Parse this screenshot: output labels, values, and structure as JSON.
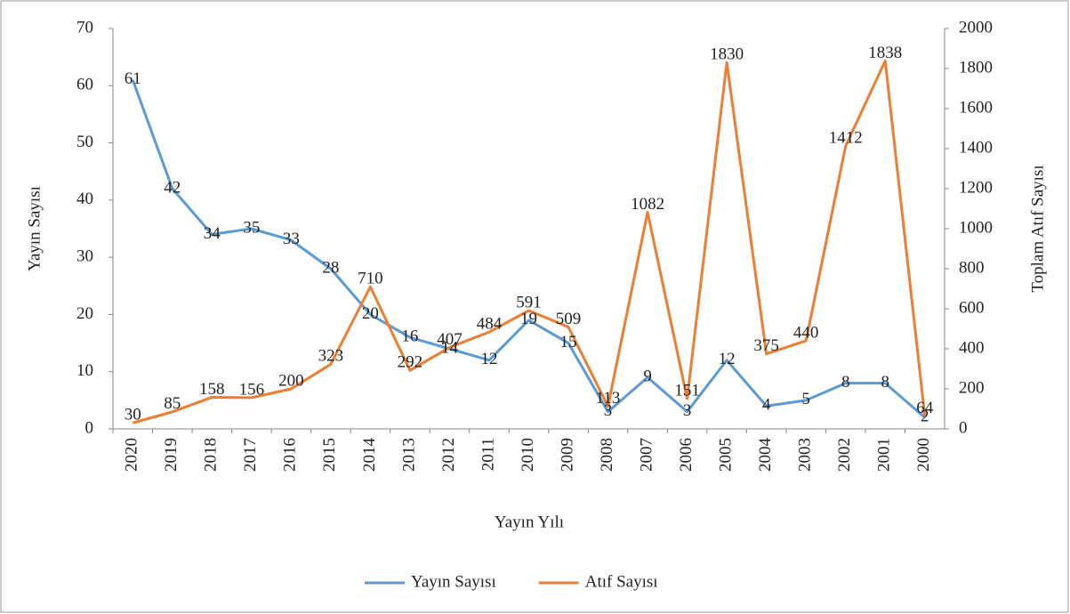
{
  "chart_data": {
    "type": "line",
    "x_label": "Yayın Yılı",
    "y_label": "Yayın Sayısı",
    "y2_label": "Toplam Atıf Sayısı",
    "categories": [
      "2020",
      "2019",
      "2018",
      "2017",
      "2016",
      "2015",
      "2014",
      "2013",
      "2012",
      "2011",
      "2010",
      "2009",
      "2008",
      "2007",
      "2006",
      "2005",
      "2004",
      "2003",
      "2002",
      "2001",
      "2000"
    ],
    "series": [
      {
        "name": "Yayın Sayısı",
        "color": "#5b9bd5",
        "values": [
          61,
          42,
          34,
          35,
          33,
          28,
          20,
          16,
          14,
          12,
          19,
          15,
          3,
          9,
          3,
          12,
          4,
          5,
          8,
          8,
          2
        ]
      },
      {
        "name": "Atıf Sayısı",
        "color": "#ed7d31",
        "axis": "y2",
        "values": [
          30,
          85,
          158,
          156,
          200,
          323,
          710,
          292,
          407,
          484,
          591,
          509,
          113,
          1082,
          151,
          1830,
          375,
          440,
          1412,
          1838,
          64
        ]
      }
    ],
    "ylim": [
      0,
      70
    ],
    "yticks": [
      0,
      10,
      20,
      30,
      40,
      50,
      60,
      70
    ],
    "y2lim": [
      0,
      2000
    ],
    "y2ticks": [
      0,
      200,
      400,
      600,
      800,
      1000,
      1200,
      1400,
      1600,
      1800,
      2000
    ],
    "legend": "bottom"
  }
}
